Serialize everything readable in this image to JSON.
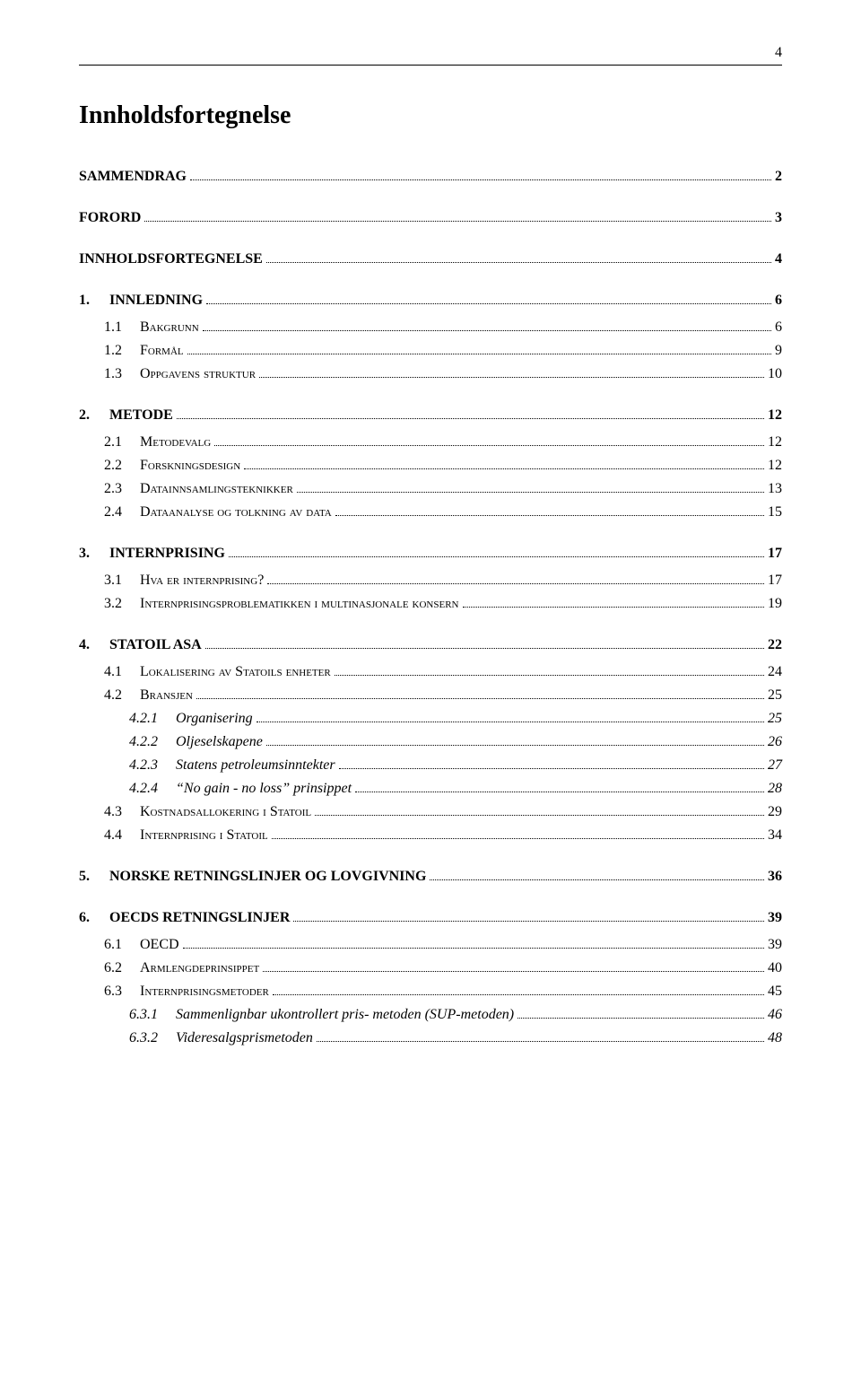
{
  "page_number_top": "4",
  "title": "Innholdsfortegnelse",
  "entries": [
    {
      "level": 1,
      "num": "",
      "label": "SAMMENDRAG",
      "page": "2",
      "smallcaps": false
    },
    {
      "level": 1,
      "num": "",
      "label": "FORORD",
      "page": "3",
      "smallcaps": false
    },
    {
      "level": 1,
      "num": "",
      "label": "INNHOLDSFORTEGNELSE",
      "page": "4",
      "smallcaps": false
    },
    {
      "level": 1,
      "num": "1.",
      "label": "INNLEDNING",
      "page": "6",
      "smallcaps": false
    },
    {
      "level": 2,
      "num": "1.1",
      "label": "Bakgrunn",
      "page": "6",
      "smallcaps": true
    },
    {
      "level": 2,
      "num": "1.2",
      "label": "Formål",
      "page": "9",
      "smallcaps": true
    },
    {
      "level": 2,
      "num": "1.3",
      "label": "Oppgavens struktur",
      "page": "10",
      "smallcaps": true
    },
    {
      "level": 1,
      "num": "2.",
      "label": "METODE",
      "page": "12",
      "smallcaps": false
    },
    {
      "level": 2,
      "num": "2.1",
      "label": "Metodevalg",
      "page": "12",
      "smallcaps": true
    },
    {
      "level": 2,
      "num": "2.2",
      "label": "Forskningsdesign",
      "page": "12",
      "smallcaps": true
    },
    {
      "level": 2,
      "num": "2.3",
      "label": "Datainnsamlingsteknikker",
      "page": "13",
      "smallcaps": true
    },
    {
      "level": 2,
      "num": "2.4",
      "label": "Dataanalyse og tolkning av data",
      "page": "15",
      "smallcaps": true
    },
    {
      "level": 1,
      "num": "3.",
      "label": "INTERNPRISING",
      "page": "17",
      "smallcaps": false
    },
    {
      "level": 2,
      "num": "3.1",
      "label": "Hva er internprising?",
      "page": "17",
      "smallcaps": true
    },
    {
      "level": 2,
      "num": "3.2",
      "label": "Internprisingsproblematikken i multinasjonale konsern",
      "page": "19",
      "smallcaps": true
    },
    {
      "level": 1,
      "num": "4.",
      "label": "STATOIL ASA",
      "page": "22",
      "smallcaps": false
    },
    {
      "level": 2,
      "num": "4.1",
      "label": "Lokalisering av Statoils enheter",
      "page": "24",
      "smallcaps": true
    },
    {
      "level": 2,
      "num": "4.2",
      "label": "Bransjen",
      "page": "25",
      "smallcaps": true
    },
    {
      "level": 3,
      "num": "4.2.1",
      "label": "Organisering",
      "page": "25",
      "smallcaps": false
    },
    {
      "level": 3,
      "num": "4.2.2",
      "label": "Oljeselskapene",
      "page": "26",
      "smallcaps": false
    },
    {
      "level": 3,
      "num": "4.2.3",
      "label": "Statens petroleumsinntekter",
      "page": "27",
      "smallcaps": false
    },
    {
      "level": 3,
      "num": "4.2.4",
      "label": "“No gain - no loss” prinsippet",
      "page": "28",
      "smallcaps": false
    },
    {
      "level": 2,
      "num": "4.3",
      "label": "Kostnadsallokering i Statoil",
      "page": "29",
      "smallcaps": true
    },
    {
      "level": 2,
      "num": "4.4",
      "label": "Internprising i Statoil",
      "page": "34",
      "smallcaps": true
    },
    {
      "level": 1,
      "num": "5.",
      "label": "NORSKE RETNINGSLINJER OG LOVGIVNING",
      "page": "36",
      "smallcaps": false
    },
    {
      "level": 1,
      "num": "6.",
      "label": "OECDS RETNINGSLINJER",
      "page": "39",
      "smallcaps": false
    },
    {
      "level": 2,
      "num": "6.1",
      "label": "OECD",
      "page": "39",
      "smallcaps": false
    },
    {
      "level": 2,
      "num": "6.2",
      "label": "Armlengdeprinsippet",
      "page": "40",
      "smallcaps": true
    },
    {
      "level": 2,
      "num": "6.3",
      "label": "Internprisingsmetoder",
      "page": "45",
      "smallcaps": true
    },
    {
      "level": 3,
      "num": "6.3.1",
      "label": "Sammenlignbar ukontrollert pris- metoden (SUP-metoden)",
      "page": "46",
      "smallcaps": false
    },
    {
      "level": 3,
      "num": "6.3.2",
      "label": "Videresalgsprismetoden",
      "page": "48",
      "smallcaps": false
    }
  ]
}
